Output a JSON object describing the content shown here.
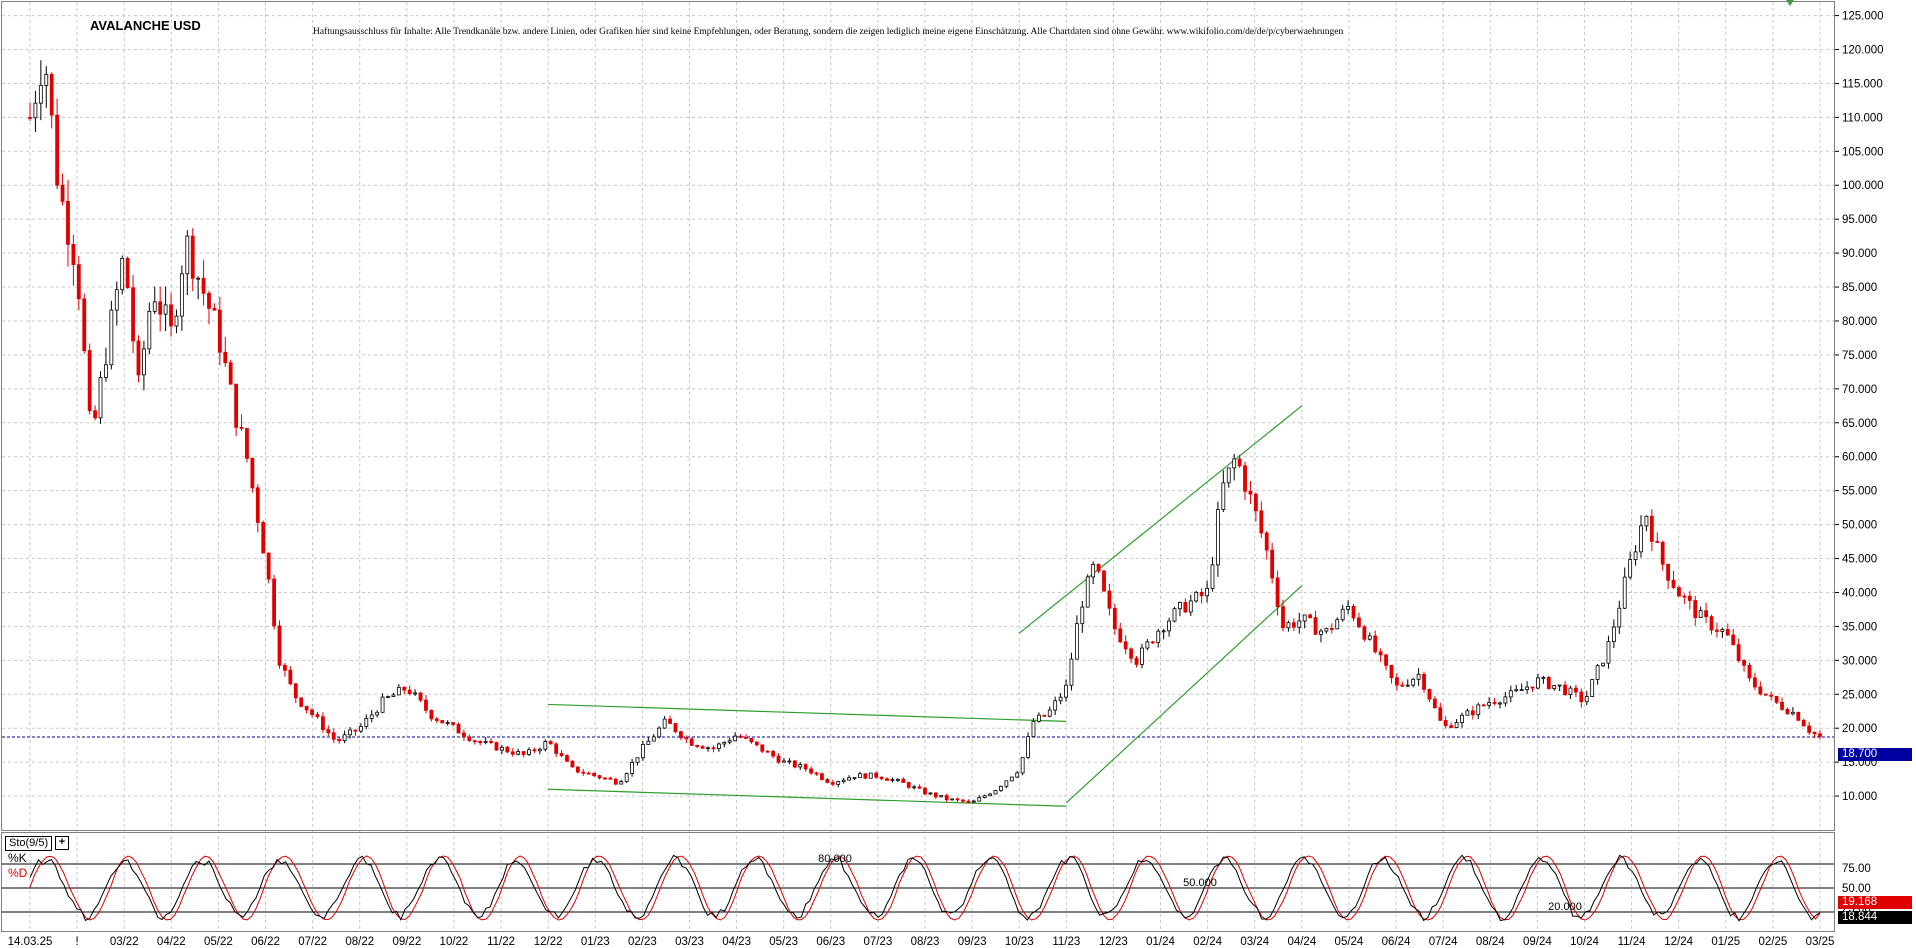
{
  "header": {
    "title": "AVALANCHE USD",
    "disclaimer": "Haftungsausschluss für Inhalte: Alle Trendkanäle bzw. andere Linien, oder Grafiken hier sind keine Empfehlungen, oder Beratung, sondern die zeigen lediglich meine eigene Einschätzung. Alle Chartdaten sind ohne Gewähr. www.wikifolio.com/de/de/p/cyberwaehrungen"
  },
  "indicator": {
    "name": "Sto(9/5)",
    "plus_icon": "plus-icon",
    "k_label": "%K",
    "d_label": "%D",
    "levels": [
      80,
      50,
      20
    ],
    "level_labels": [
      "80.000",
      "50.000",
      "20.000"
    ],
    "axis_labels": [
      "75.00",
      "50.00",
      "25.00"
    ],
    "k_value": "18.844",
    "d_value": "19.168"
  },
  "colors": {
    "up_candle": "#000000",
    "down_candle": "#e00000",
    "trendline": "#2e9e2e",
    "price_line": "#0000a0",
    "price_tag_bg": "#0000a0",
    "k_line": "#000000",
    "d_line": "#e00000",
    "grid": "#c8c8c8"
  },
  "chart_data": {
    "type": "candlestick",
    "title": "AVALANCHE USD",
    "ylim": [
      5,
      127
    ],
    "y_ticks": [
      "10.000",
      "15.000",
      "20.000",
      "25.000",
      "30.000",
      "35.000",
      "40.000",
      "45.000",
      "50.000",
      "55.000",
      "60.000",
      "65.000",
      "70.000",
      "75.000",
      "80.000",
      "85.000",
      "90.000",
      "95.000",
      "100.000",
      "105.000",
      "110.000",
      "115.000",
      "120.000",
      "125.000"
    ],
    "x_ticks": [
      "14.03.25",
      "!",
      "03/22",
      "04/22",
      "05/22",
      "06/22",
      "07/22",
      "08/22",
      "09/22",
      "10/22",
      "11/22",
      "12/22",
      "01/23",
      "02/23",
      "03/23",
      "04/23",
      "05/23",
      "06/23",
      "07/23",
      "08/23",
      "09/23",
      "10/23",
      "11/23",
      "12/23",
      "01/24",
      "02/24",
      "03/24",
      "04/24",
      "05/24",
      "06/24",
      "07/24",
      "08/24",
      "09/24",
      "10/24",
      "11/24",
      "12/24",
      "01/25",
      "02/25",
      "03/25"
    ],
    "grid": true,
    "current_price": 18.7,
    "current_price_label": "18.700",
    "approx_closes": [
      [
        0,
        110
      ],
      [
        0.3,
        120
      ],
      [
        0.6,
        100
      ],
      [
        1,
        88
      ],
      [
        1.3,
        62
      ],
      [
        1.6,
        75
      ],
      [
        2,
        90
      ],
      [
        2.3,
        70
      ],
      [
        2.6,
        85
      ],
      [
        3,
        78
      ],
      [
        3.3,
        92
      ],
      [
        3.6,
        86
      ],
      [
        4,
        78
      ],
      [
        4.3,
        68
      ],
      [
        4.6,
        60
      ],
      [
        5,
        45
      ],
      [
        5.3,
        30
      ],
      [
        5.6,
        25
      ],
      [
        6,
        22
      ],
      [
        6.5,
        18
      ],
      [
        7,
        20
      ],
      [
        7.5,
        24
      ],
      [
        8,
        26
      ],
      [
        8.5,
        22
      ],
      [
        9,
        20
      ],
      [
        9.5,
        18
      ],
      [
        10,
        17
      ],
      [
        10.5,
        16
      ],
      [
        11,
        18
      ],
      [
        11.5,
        14
      ],
      [
        12,
        13
      ],
      [
        12.5,
        12
      ],
      [
        13,
        17
      ],
      [
        13.5,
        21
      ],
      [
        14,
        18
      ],
      [
        14.5,
        17
      ],
      [
        15,
        19
      ],
      [
        15.5,
        17
      ],
      [
        16,
        15
      ],
      [
        16.5,
        14
      ],
      [
        17,
        12
      ],
      [
        17.5,
        13
      ],
      [
        18,
        13
      ],
      [
        18.5,
        12
      ],
      [
        19,
        10.5
      ],
      [
        19.5,
        9.5
      ],
      [
        20,
        9
      ],
      [
        20.5,
        11
      ],
      [
        21,
        14
      ],
      [
        21.3,
        21
      ],
      [
        21.6,
        22
      ],
      [
        22,
        26
      ],
      [
        22.3,
        38
      ],
      [
        22.6,
        44
      ],
      [
        23,
        35
      ],
      [
        23.5,
        30
      ],
      [
        24,
        35
      ],
      [
        24.5,
        38
      ],
      [
        25,
        40
      ],
      [
        25.3,
        55
      ],
      [
        25.6,
        60
      ],
      [
        26,
        52
      ],
      [
        26.3,
        45
      ],
      [
        26.6,
        35
      ],
      [
        27,
        36
      ],
      [
        27.5,
        34
      ],
      [
        28,
        38
      ],
      [
        28.5,
        32
      ],
      [
        29,
        26
      ],
      [
        29.5,
        28
      ],
      [
        30,
        20
      ],
      [
        30.5,
        22
      ],
      [
        31,
        24
      ],
      [
        31.5,
        25
      ],
      [
        32,
        27
      ],
      [
        32.5,
        26
      ],
      [
        33,
        24
      ],
      [
        33.5,
        32
      ],
      [
        34,
        45
      ],
      [
        34.3,
        52
      ],
      [
        34.6,
        45
      ],
      [
        35,
        40
      ],
      [
        35.5,
        36
      ],
      [
        36,
        34
      ],
      [
        36.5,
        27
      ],
      [
        37,
        24
      ],
      [
        37.5,
        22
      ],
      [
        37.8,
        19.5
      ],
      [
        38,
        18.7
      ]
    ],
    "trend_channels": [
      {
        "from": [
          "12/22",
          23.5
        ],
        "to": [
          "11/23",
          21.0
        ]
      },
      {
        "from": [
          "12/22",
          11.0
        ],
        "to": [
          "11/23",
          8.5
        ]
      },
      {
        "from": [
          "10/23",
          34.0
        ],
        "to": [
          "04/24",
          67.5
        ]
      },
      {
        "from": [
          "11/23",
          9.0
        ],
        "to": [
          "04/24",
          41.0
        ]
      }
    ],
    "stochastic": {
      "name": "Sto(9/5)",
      "ylim": [
        0,
        100
      ],
      "levels": [
        80,
        50,
        20
      ],
      "k_last": 18.844,
      "d_last": 19.168
    }
  }
}
